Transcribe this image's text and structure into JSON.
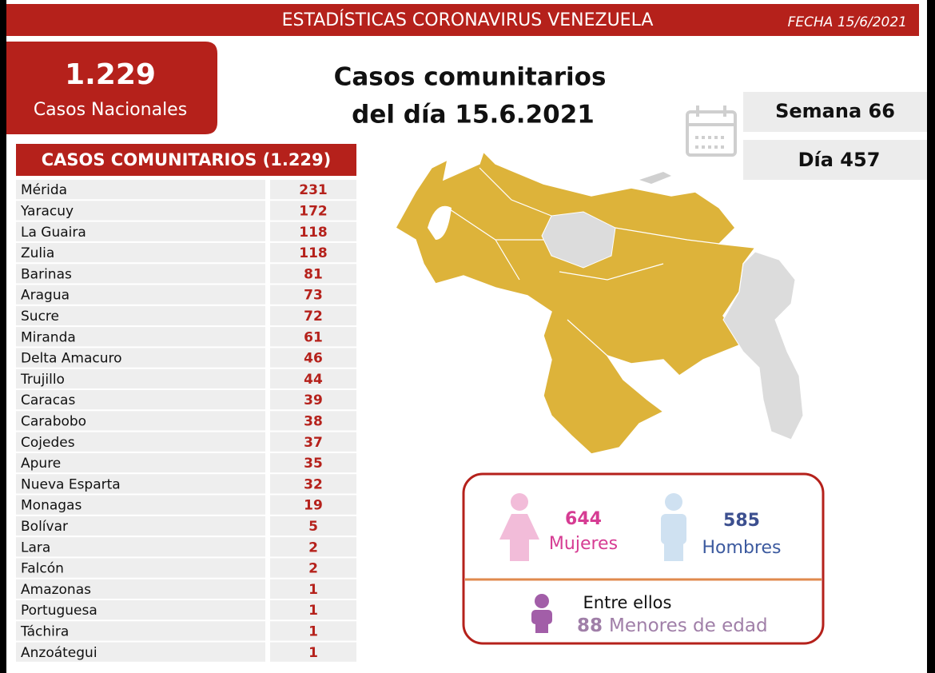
{
  "header": {
    "title": "ESTADÍSTICAS CORONAVIRUS VENEZUELA",
    "date": "FECHA 15/6/2021"
  },
  "national": {
    "value": "1.229",
    "label": "Casos Nacionales"
  },
  "headline": [
    "Casos comunitarios",
    "del día 15.6.2021"
  ],
  "week": "Semana 66",
  "day": "Día 457",
  "table": {
    "title": "CASOS COMUNITARIOS (1.229)",
    "rows": [
      [
        "Mérida",
        231
      ],
      [
        "Yaracuy",
        172
      ],
      [
        "La Guaira",
        118
      ],
      [
        "Zulia",
        118
      ],
      [
        "Barinas",
        81
      ],
      [
        "Aragua",
        73
      ],
      [
        "Sucre",
        72
      ],
      [
        "Miranda",
        61
      ],
      [
        "Delta Amacuro",
        46
      ],
      [
        "Trujillo",
        44
      ],
      [
        "Caracas",
        39
      ],
      [
        "Carabobo",
        38
      ],
      [
        "Cojedes",
        37
      ],
      [
        "Apure",
        35
      ],
      [
        "Nueva Esparta",
        32
      ],
      [
        "Monagas",
        19
      ],
      [
        "Bolívar",
        5
      ],
      [
        "Lara",
        2
      ],
      [
        "Falcón",
        2
      ],
      [
        "Amazonas",
        1
      ],
      [
        "Portuguesa",
        1
      ],
      [
        "Táchira",
        1
      ],
      [
        "Anzoátegui",
        1
      ]
    ]
  },
  "gender": {
    "women": {
      "value": 644,
      "label": "Mujeres"
    },
    "men": {
      "value": 585,
      "label": "Hombres"
    },
    "minors": {
      "intro": "Entre ellos",
      "value": 88,
      "label": "Menores de edad"
    }
  }
}
